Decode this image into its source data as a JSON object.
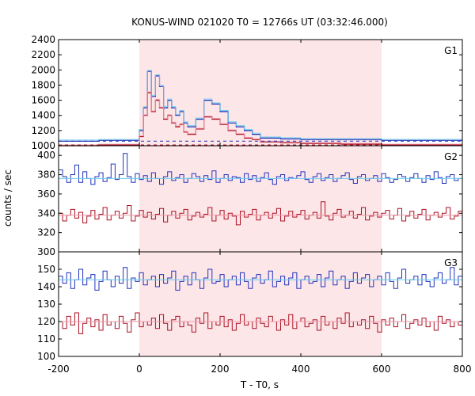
{
  "chart_data": {
    "type": "line",
    "title": "KONUS-WIND 021020 T0 = 12766s UT (03:32:46.000)",
    "xlabel": "T - T0, s",
    "ylabel": "counts / sec",
    "xlim": [
      -200,
      800
    ],
    "x_ticks": [
      "-200",
      "0",
      "200",
      "400",
      "600",
      "800"
    ],
    "highlight_interval": [
      0,
      600
    ],
    "colors": {
      "highlight": "#fde6e8",
      "blue": "#2233bb",
      "red": "#aa1122",
      "light_blue": "#66ccee",
      "pink": "#ee99aa",
      "dashed_blue": "#2233bb",
      "dashed_red": "#aa1122"
    },
    "panels": [
      {
        "label": "G1",
        "ylim": [
          1000,
          2400
        ],
        "y_ticks": [
          "1000",
          "1200",
          "1400",
          "1600",
          "1800",
          "2000",
          "2200",
          "2400"
        ],
        "bins": [
          [
            -200,
            -100,
            1060
          ],
          [
            -100,
            0,
            1070
          ],
          [
            0,
            10,
            1200
          ],
          [
            10,
            20,
            1500
          ],
          [
            20,
            30,
            1980
          ],
          [
            30,
            40,
            1650
          ],
          [
            40,
            50,
            1920
          ],
          [
            50,
            60,
            1780
          ],
          [
            60,
            70,
            1500
          ],
          [
            70,
            80,
            1600
          ],
          [
            80,
            90,
            1500
          ],
          [
            90,
            100,
            1400
          ],
          [
            100,
            110,
            1450
          ],
          [
            110,
            120,
            1300
          ],
          [
            120,
            140,
            1250
          ],
          [
            140,
            160,
            1350
          ],
          [
            160,
            180,
            1600
          ],
          [
            180,
            200,
            1550
          ],
          [
            200,
            220,
            1450
          ],
          [
            220,
            240,
            1300
          ],
          [
            240,
            260,
            1250
          ],
          [
            260,
            280,
            1200
          ],
          [
            280,
            300,
            1150
          ],
          [
            300,
            350,
            1100
          ],
          [
            350,
            400,
            1090
          ],
          [
            400,
            500,
            1080
          ],
          [
            500,
            600,
            1080
          ],
          [
            600,
            800,
            1070
          ]
        ],
        "series": [
          {
            "name": "",
            "values": [
              1060,
              1070,
              1200,
              1500,
              1980,
              1650,
              1920,
              1780,
              1500,
              1600,
              1500,
              1400,
              1450,
              1300,
              1250,
              1350,
              1600,
              1550,
              1450,
              1300,
              1250,
              1200,
              1150,
              1100,
              1090,
              1080,
              1080,
              1070
            ]
          },
          {
            "name": "",
            "values": [
              1000,
              1010,
              1120,
              1400,
              1700,
              1450,
              1600,
              1500,
              1350,
              1400,
              1300,
              1250,
              1280,
              1180,
              1150,
              1220,
              1380,
              1350,
              1280,
              1200,
              1150,
              1100,
              1080,
              1050,
              1040,
              1030,
              1020,
              1010
            ]
          }
        ],
        "background_levels": [
          1060,
          1010
        ]
      },
      {
        "label": "G2",
        "ylim": [
          300,
          410
        ],
        "y_ticks": [
          "300",
          "320",
          "340",
          "360",
          "380",
          "400"
        ],
        "series": [
          {
            "name": "",
            "values": [
              385,
              378,
              372,
              380,
              390,
              372,
              383,
              376,
              370,
              378,
              382,
              373,
              377,
              391,
              375,
              380,
              402,
              378,
              372,
              381,
              375,
              379,
              373,
              382,
              376,
              370,
              378,
              383,
              374,
              377,
              380,
              372,
              376,
              381,
              378,
              373,
              379,
              375,
              384,
              372,
              376,
              380,
              374,
              378,
              377,
              372,
              381,
              375,
              379,
              373,
              377,
              382,
              375,
              370,
              378,
              380,
              374,
              377,
              376,
              379,
              383,
              375,
              372,
              378,
              381,
              374,
              377,
              380,
              373,
              376,
              379,
              382,
              375,
              371,
              378,
              380,
              374,
              376,
              379,
              373,
              381,
              377,
              372,
              375,
              380,
              378,
              373,
              377,
              381,
              376,
              372,
              379,
              375,
              383,
              377,
              371,
              378,
              380,
              374,
              376
            ]
          },
          {
            "name": "",
            "values": [
              340,
              332,
              338,
              344,
              335,
              341,
              330,
              337,
              343,
              334,
              339,
              346,
              333,
              338,
              342,
              335,
              340,
              348,
              332,
              337,
              343,
              336,
              341,
              334,
              339,
              345,
              331,
              338,
              342,
              335,
              340,
              344,
              333,
              337,
              341,
              336,
              339,
              346,
              332,
              338,
              343,
              334,
              340,
              337,
              328,
              342,
              336,
              339,
              344,
              333,
              338,
              341,
              335,
              340,
              345,
              332,
              337,
              342,
              336,
              339,
              343,
              334,
              338,
              341,
              335,
              352,
              337,
              333,
              340,
              344,
              336,
              338,
              342,
              335,
              339,
              346,
              333,
              337,
              341,
              336,
              340,
              343,
              334,
              338,
              345,
              332,
              337,
              342,
              335,
              339,
              344,
              333,
              338,
              341,
              336,
              340,
              346,
              334,
              337,
              342
            ]
          }
        ],
        "fit_levels": [
          376,
          338
        ]
      },
      {
        "label": "G3",
        "ylim": [
          100,
          160
        ],
        "y_ticks": [
          "100",
          "110",
          "120",
          "130",
          "140",
          "150"
        ],
        "series": [
          {
            "name": "",
            "values": [
              146,
              142,
              148,
              139,
              144,
              150,
              141,
              145,
              147,
              138,
              143,
              149,
              144,
              140,
              146,
              142,
              151,
              139,
              145,
              143,
              148,
              141,
              144,
              146,
              140,
              147,
              142,
              145,
              149,
              138,
              143,
              146,
              141,
              148,
              144,
              139,
              145,
              150,
              142,
              143,
              147,
              140,
              144,
              146,
              141,
              148,
              143,
              139,
              145,
              147,
              142,
              144,
              149,
              140,
              143,
              146,
              141,
              145,
              148,
              139,
              144,
              146,
              142,
              143,
              147,
              140,
              145,
              149,
              141,
              144,
              146,
              139,
              143,
              148,
              142,
              145,
              147,
              140,
              144,
              146,
              141,
              148,
              143,
              139,
              145,
              150,
              142,
              144,
              146,
              141,
              147,
              143,
              140,
              145,
              148,
              142,
              144,
              151,
              141,
              146
            ]
          },
          {
            "name": "",
            "values": [
              120,
              116,
              123,
              118,
              125,
              113,
              119,
              122,
              117,
              121,
              115,
              124,
              118,
              120,
              116,
              123,
              119,
              114,
              121,
              125,
              117,
              120,
              118,
              122,
              116,
              124,
              119,
              115,
              121,
              123,
              117,
              120,
              118,
              114,
              122,
              119,
              125,
              116,
              120,
              118,
              123,
              117,
              121,
              115,
              119,
              124,
              118,
              120,
              116,
              122,
              119,
              117,
              123,
              120,
              115,
              121,
              118,
              124,
              116,
              120,
              122,
              117,
              119,
              121,
              115,
              123,
              118,
              120,
              116,
              122,
              119,
              125,
              117,
              120,
              118,
              121,
              116,
              123,
              119,
              114,
              121,
              118,
              122,
              117,
              120,
              124,
              116,
              119,
              121,
              118,
              122,
              117,
              120,
              115,
              123,
              119,
              121,
              117,
              120,
              118
            ]
          }
        ],
        "fit_levels": [
          144,
          120
        ]
      }
    ]
  }
}
